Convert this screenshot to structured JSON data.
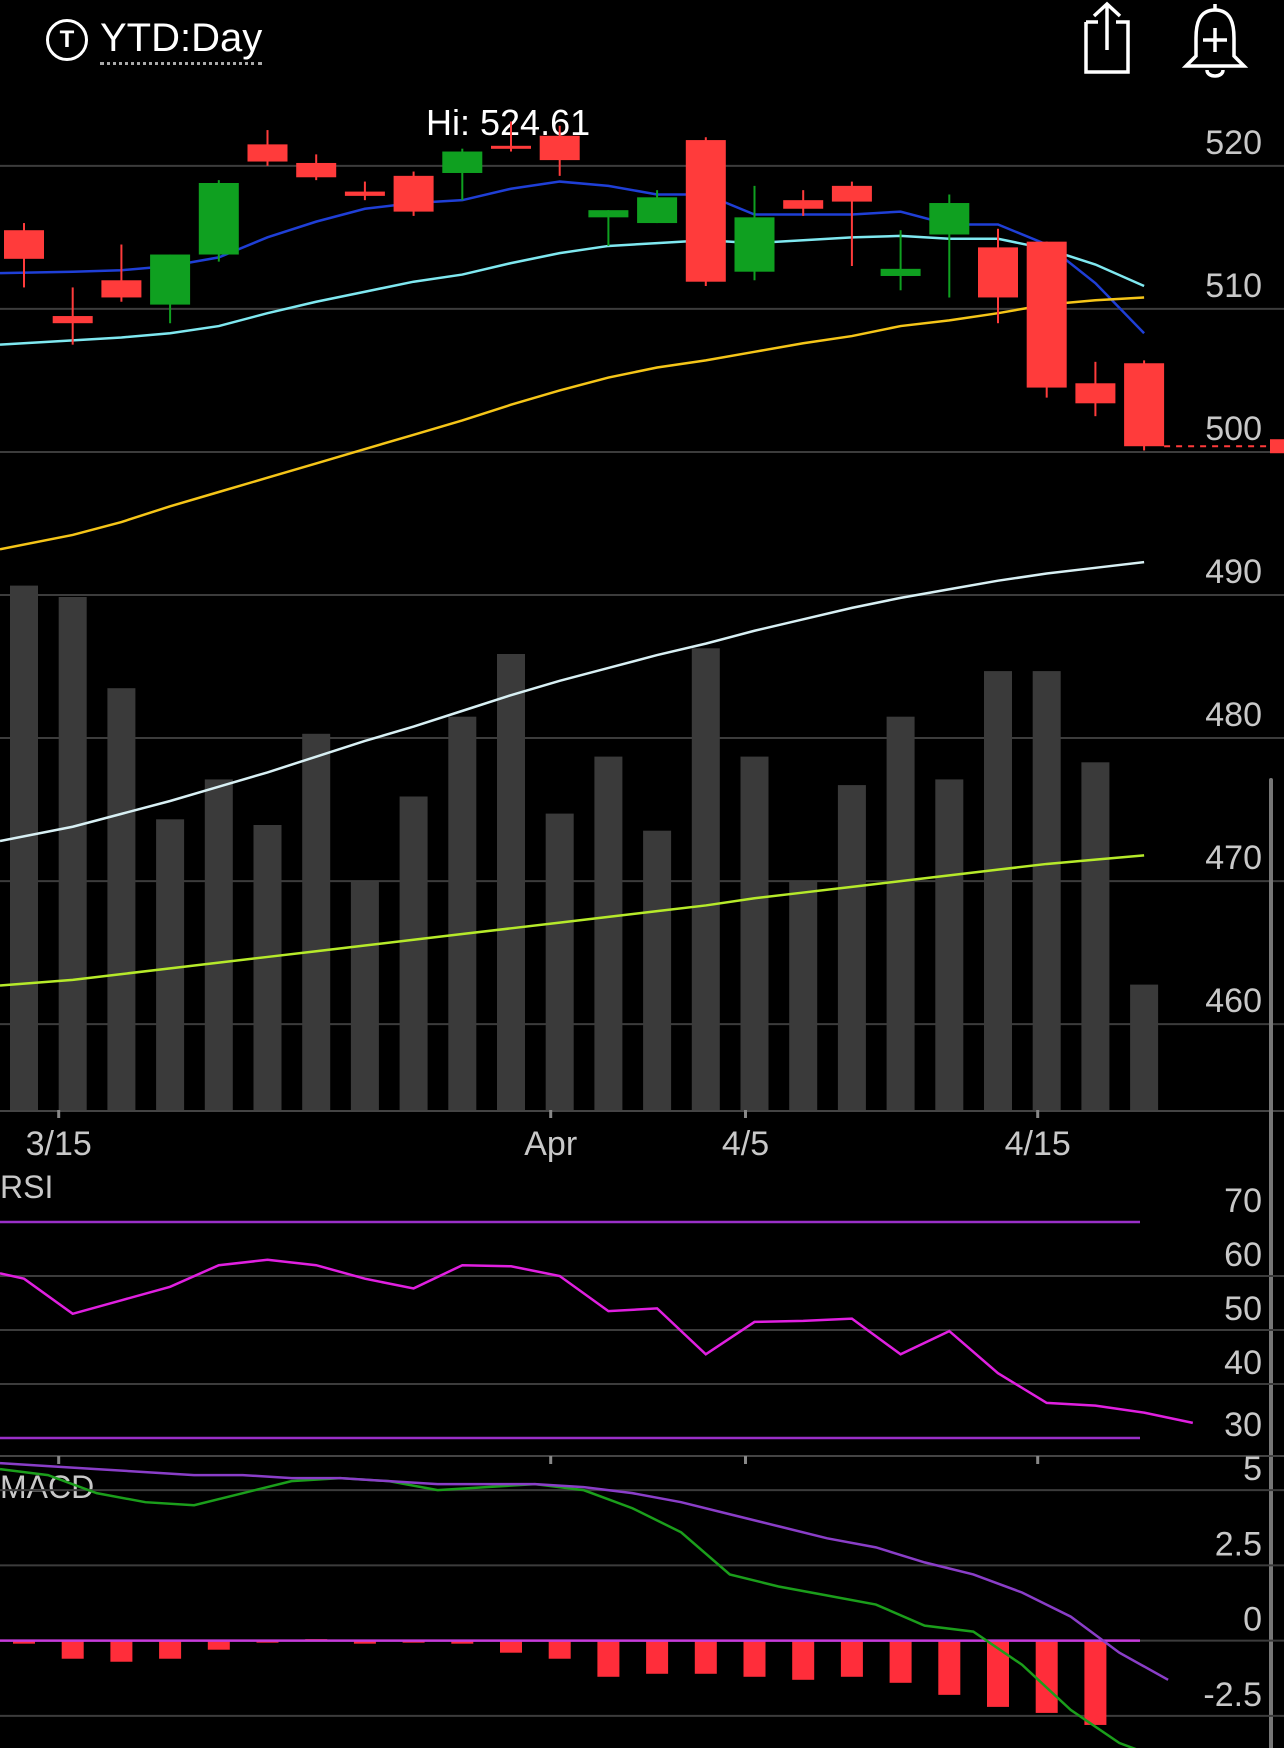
{
  "header": {
    "timeframe_icon_letter": "T",
    "timeframe_label": "YTD:Day",
    "share_icon": "share-icon",
    "alert_icon": "add-alert-bell-icon"
  },
  "hi_label": "Hi: 524.61",
  "colors": {
    "up": "#0fa020",
    "down": "#ff3b3b",
    "volume": "#3a3a3a",
    "grid": "#3c3c3c",
    "ma_blue": "#1f3fd6",
    "ma_cyan": "#7fe8f0",
    "ma_yellow": "#f5c518",
    "ma_white": "#d8f0f4",
    "ma_green": "#b6ea2a",
    "rsi": "#e020e0",
    "rsi_bounds": "#9a30c8",
    "macd": "#1b9e1b",
    "signal": "#8a3ec8",
    "hist": "#ff2d3a",
    "zero": "#c83cdc"
  },
  "chart_data": [
    {
      "type": "candlestick",
      "name": "Price",
      "ylim": [
        454,
        526
      ],
      "yticks": [
        520,
        510,
        500,
        490,
        480,
        470,
        460
      ],
      "x_date_labels": [
        {
          "index": 1,
          "label": "3/15"
        },
        {
          "index": 11,
          "label": "Apr"
        },
        {
          "index": 15,
          "label": "4/5"
        },
        {
          "index": 21,
          "label": "4/15"
        }
      ],
      "candles": [
        {
          "o": 515.5,
          "h": 516.0,
          "l": 511.5,
          "c": 513.5
        },
        {
          "o": 509.5,
          "h": 511.5,
          "l": 507.5,
          "c": 509.0
        },
        {
          "o": 512.0,
          "h": 514.5,
          "l": 510.5,
          "c": 510.8
        },
        {
          "o": 510.3,
          "h": 513.8,
          "l": 509.0,
          "c": 513.8
        },
        {
          "o": 513.8,
          "h": 519.0,
          "l": 513.3,
          "c": 518.8
        },
        {
          "o": 521.5,
          "h": 522.5,
          "l": 520.0,
          "c": 520.3
        },
        {
          "o": 520.2,
          "h": 520.8,
          "l": 519.0,
          "c": 519.2
        },
        {
          "o": 518.2,
          "h": 518.9,
          "l": 517.6,
          "c": 517.9
        },
        {
          "o": 519.3,
          "h": 519.6,
          "l": 516.5,
          "c": 516.8
        },
        {
          "o": 519.5,
          "h": 521.2,
          "l": 517.6,
          "c": 521.0
        },
        {
          "o": 521.4,
          "h": 523.1,
          "l": 521.0,
          "c": 521.2
        },
        {
          "o": 522.1,
          "h": 522.8,
          "l": 519.3,
          "c": 520.4
        },
        {
          "o": 516.4,
          "h": 516.9,
          "l": 514.4,
          "c": 516.9
        },
        {
          "o": 516.0,
          "h": 518.3,
          "l": 516.0,
          "c": 517.8
        },
        {
          "o": 521.8,
          "h": 522.0,
          "l": 511.6,
          "c": 511.9
        },
        {
          "o": 512.6,
          "h": 518.6,
          "l": 512.0,
          "c": 516.4
        },
        {
          "o": 517.6,
          "h": 518.3,
          "l": 516.5,
          "c": 517.0
        },
        {
          "o": 518.6,
          "h": 518.9,
          "l": 513.0,
          "c": 517.5
        },
        {
          "o": 512.3,
          "h": 515.5,
          "l": 511.3,
          "c": 512.8
        },
        {
          "o": 515.2,
          "h": 518.0,
          "l": 510.8,
          "c": 517.4
        },
        {
          "o": 514.3,
          "h": 515.6,
          "l": 509.0,
          "c": 510.8
        },
        {
          "o": 514.7,
          "h": 514.7,
          "l": 503.8,
          "c": 504.5
        },
        {
          "o": 504.8,
          "h": 506.3,
          "l": 502.5,
          "c": 503.4
        },
        {
          "o": 506.2,
          "h": 506.4,
          "l": 500.1,
          "c": 500.4
        }
      ],
      "volume_rel": [
        0.92,
        0.9,
        0.74,
        0.51,
        0.58,
        0.5,
        0.66,
        0.4,
        0.55,
        0.69,
        0.8,
        0.52,
        0.62,
        0.49,
        0.81,
        0.62,
        0.4,
        0.57,
        0.69,
        0.58,
        0.77,
        0.77,
        0.61,
        0.22
      ],
      "moving_averages": [
        {
          "color_key": "ma_blue",
          "values": [
            512.5,
            512.6,
            512.7,
            513.0,
            513.6,
            515.0,
            516.1,
            517.0,
            517.4,
            517.6,
            518.4,
            518.9,
            518.6,
            518.0,
            518.0,
            516.6,
            516.6,
            516.6,
            516.8,
            515.9,
            515.9,
            514.5,
            511.8,
            508.3
          ]
        },
        {
          "color_key": "ma_cyan",
          "values": [
            507.5,
            507.8,
            508.0,
            508.3,
            508.8,
            509.7,
            510.5,
            511.2,
            511.9,
            512.4,
            513.2,
            513.9,
            514.4,
            514.6,
            514.8,
            514.6,
            514.8,
            515.0,
            515.1,
            514.9,
            514.9,
            514.2,
            513.1,
            511.6
          ]
        },
        {
          "color_key": "ma_yellow",
          "values": [
            493.2,
            494.2,
            495.1,
            496.2,
            497.2,
            498.2,
            499.2,
            500.2,
            501.2,
            502.2,
            503.3,
            504.3,
            505.2,
            505.9,
            506.4,
            507.0,
            507.6,
            508.1,
            508.8,
            509.2,
            509.7,
            510.3,
            510.6,
            510.8
          ]
        },
        {
          "color_key": "ma_white",
          "values": [
            472.8,
            473.8,
            474.7,
            475.6,
            476.6,
            477.6,
            478.7,
            479.8,
            480.8,
            481.9,
            483.0,
            484.0,
            484.9,
            485.8,
            486.6,
            487.5,
            488.3,
            489.1,
            489.8,
            490.4,
            491.0,
            491.5,
            491.9,
            492.3
          ]
        },
        {
          "color_key": "ma_green",
          "values": [
            462.7,
            463.1,
            463.5,
            463.9,
            464.3,
            464.7,
            465.1,
            465.5,
            465.9,
            466.3,
            466.7,
            467.1,
            467.5,
            467.9,
            468.3,
            468.8,
            469.2,
            469.6,
            470.0,
            470.4,
            470.8,
            471.2,
            471.5,
            471.8
          ]
        }
      ],
      "last_price_line": 500.4
    },
    {
      "type": "line",
      "name": "RSI",
      "title": "RSI",
      "ylim": [
        25,
        75
      ],
      "yticks": [
        70,
        60,
        50,
        40,
        30
      ],
      "bounds": [
        70,
        30
      ],
      "series": [
        {
          "values": [
            60.5,
            59.5,
            53.0,
            55.5,
            58.0,
            62.0,
            63.0,
            62.0,
            59.5,
            57.7,
            62.0,
            61.8,
            60.0,
            53.5,
            54.0,
            45.5,
            51.5,
            51.7,
            52.1,
            45.5,
            49.8,
            42.0,
            36.5,
            36.0,
            34.7,
            32.8
          ]
        }
      ]
    },
    {
      "type": "line+bar",
      "name": "MACD",
      "title": "MACD",
      "ylim": [
        -3.3,
        6.5
      ],
      "yticks": [
        5,
        2.5,
        0,
        -2.5
      ],
      "series": [
        {
          "color_key": "macd",
          "values": [
            5.7,
            5.5,
            4.9,
            4.6,
            4.5,
            4.9,
            5.3,
            5.4,
            5.3,
            5.0,
            5.1,
            5.2,
            5.0,
            4.4,
            3.6,
            2.2,
            1.8,
            1.5,
            1.2,
            0.5,
            0.3,
            -0.8,
            -2.3,
            -3.4,
            -4.0
          ]
        },
        {
          "color_key": "signal",
          "values": [
            5.9,
            5.8,
            5.7,
            5.6,
            5.5,
            5.5,
            5.4,
            5.4,
            5.3,
            5.2,
            5.2,
            5.2,
            5.1,
            4.9,
            4.6,
            4.2,
            3.8,
            3.4,
            3.1,
            2.6,
            2.2,
            1.6,
            0.8,
            -0.4,
            -1.3
          ]
        }
      ],
      "histogram": [
        -0.1,
        -0.6,
        -0.7,
        -0.6,
        -0.3,
        0.0,
        0.05,
        -0.1,
        0.0,
        -0.1,
        -0.4,
        -0.6,
        -1.2,
        -1.1,
        -1.1,
        -1.2,
        -1.3,
        -1.2,
        -1.4,
        -1.8,
        -2.2,
        -2.4,
        -2.8
      ]
    }
  ]
}
